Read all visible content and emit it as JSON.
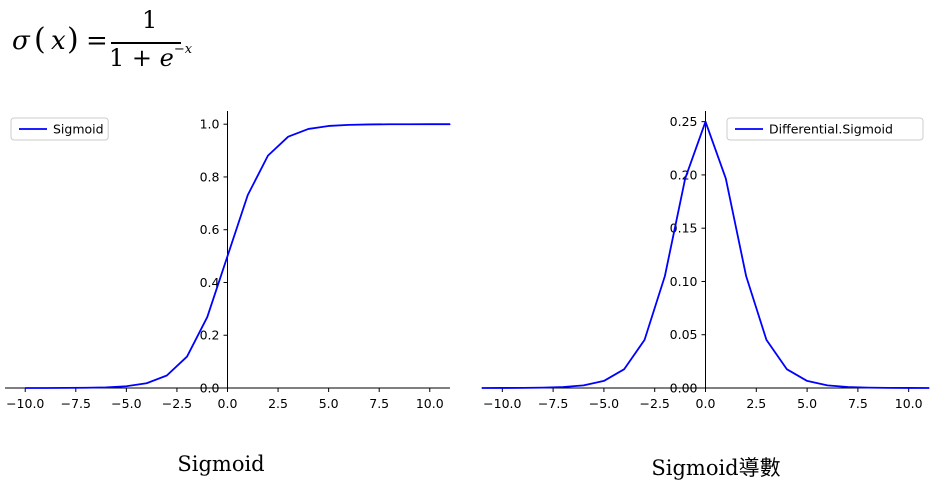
{
  "formula": {
    "lhs_func": "σ",
    "lhs_arg": "x",
    "numerator": "1",
    "denominator_prefix": "1 + ",
    "denominator_base": "e",
    "denominator_exp": "−x"
  },
  "chart_data": [
    {
      "type": "line",
      "caption": "Sigmoid",
      "x": [
        -10,
        -9,
        -8,
        -7,
        -6,
        -5,
        -4,
        -3,
        -2,
        -1,
        0,
        1,
        2,
        3,
        4,
        5,
        6,
        7,
        8,
        9,
        10,
        11
      ],
      "series": [
        {
          "name": "Sigmoid",
          "color": "#0000ff",
          "values": [
            5e-05,
            0.00012,
            0.00034,
            0.00091,
            0.00247,
            0.00669,
            0.01799,
            0.04743,
            0.1192,
            0.26894,
            0.5,
            0.73106,
            0.8808,
            0.95257,
            0.98201,
            0.99331,
            0.99753,
            0.99909,
            0.99966,
            0.99988,
            0.99995,
            0.99998
          ]
        }
      ],
      "xlim": [
        -11,
        11
      ],
      "ylim": [
        0,
        1.05
      ],
      "xticks": [
        -10,
        -7.5,
        -5,
        -2.5,
        0,
        2.5,
        5,
        7.5,
        10
      ],
      "xtick_labels": [
        "−10.0",
        "−7.5",
        "−5.0",
        "−2.5",
        "0.0",
        "2.5",
        "5.0",
        "7.5",
        "10.0"
      ],
      "yticks": [
        0,
        0.2,
        0.4,
        0.6,
        0.8,
        1.0
      ],
      "ytick_labels": [
        "0.0",
        "0.2",
        "0.4",
        "0.6",
        "0.8",
        "1.0"
      ],
      "legend_position": "upper-left",
      "grid": false,
      "spines": "centered at origin"
    },
    {
      "type": "line",
      "caption": "Sigmoid導數",
      "x": [
        -11,
        -10,
        -9,
        -8,
        -7,
        -6,
        -5,
        -4,
        -3,
        -2,
        -1,
        0,
        1,
        2,
        3,
        4,
        5,
        6,
        7,
        8,
        9,
        10,
        11
      ],
      "series": [
        {
          "name": "Differential.Sigmoid",
          "color": "#0000ff",
          "values": [
            2e-05,
            5e-05,
            0.00012,
            0.00034,
            0.00091,
            0.00247,
            0.00665,
            0.01767,
            0.04518,
            0.10499,
            0.19661,
            0.25,
            0.19661,
            0.10499,
            0.04518,
            0.01767,
            0.00665,
            0.00247,
            0.00091,
            0.00034,
            0.00012,
            5e-05,
            2e-05
          ]
        }
      ],
      "xlim": [
        -11,
        11
      ],
      "ylim": [
        0,
        0.26
      ],
      "xticks": [
        -10,
        -7.5,
        -5,
        -2.5,
        0,
        2.5,
        5,
        7.5,
        10
      ],
      "xtick_labels": [
        "−10.0",
        "−7.5",
        "−5.0",
        "−2.5",
        "0.0",
        "2.5",
        "5.0",
        "7.5",
        "10.0"
      ],
      "yticks": [
        0,
        0.05,
        0.1,
        0.15,
        0.2,
        0.25
      ],
      "ytick_labels": [
        "0.00",
        "0.05",
        "0.10",
        "0.15",
        "0.20",
        "0.25"
      ],
      "legend_position": "upper-right",
      "grid": false,
      "spines": "centered at origin"
    }
  ]
}
